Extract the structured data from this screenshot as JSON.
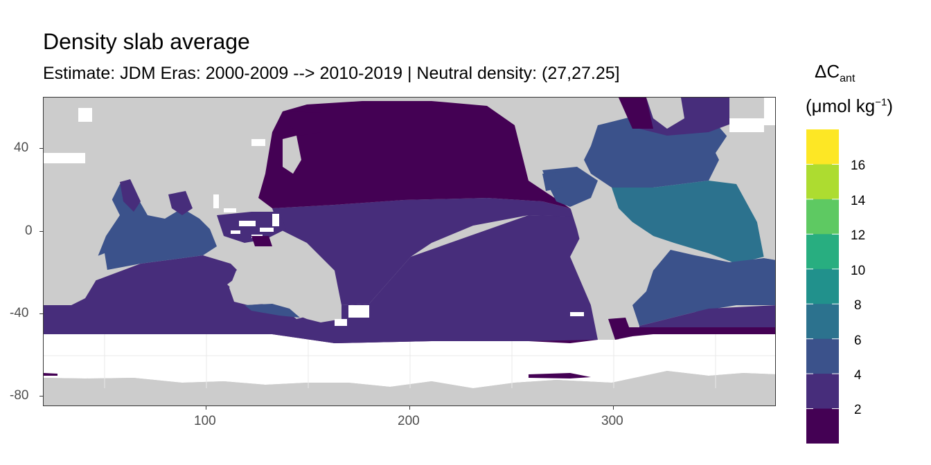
{
  "title": "Density slab average",
  "subtitle": "Estimate: JDM Eras: 2000-2009 --> 2010-2019 | Neutral density: (27,27.25]",
  "legend": {
    "title_prefix": "ΔC",
    "title_sub": "ant",
    "unit_open": "(μmol kg",
    "unit_sup": "−1",
    "unit_close": ")",
    "labels": [
      "16",
      "14",
      "12",
      "10",
      "8",
      "6",
      "4",
      "2"
    ]
  },
  "axes": {
    "y_labels": [
      "40",
      "0",
      "-40",
      "-80"
    ],
    "x_labels": [
      "100",
      "200",
      "300"
    ]
  },
  "colors": {
    "land": "#cccccc",
    "missing": "#ffffff",
    "bins": [
      "#440154",
      "#472d7b",
      "#3b528b",
      "#2c728e",
      "#21918c",
      "#28ae80",
      "#5ec962",
      "#addc30",
      "#fde725"
    ]
  },
  "chart_data": {
    "type": "heatmap",
    "title": "Density slab average",
    "subtitle": "Estimate: JDM Eras: 2000-2009 --> 2010-2019 | Neutral density: (27,27.25]",
    "xlabel": "",
    "ylabel": "",
    "xlim": [
      20,
      380
    ],
    "ylim": [
      -85,
      65
    ],
    "x_ticks": [
      100,
      200,
      300
    ],
    "y_ticks": [
      40,
      0,
      -40,
      -80
    ],
    "legend_title": "ΔCant (μmol kg−1)",
    "color_bins": [
      [
        0,
        2
      ],
      [
        2,
        4
      ],
      [
        4,
        6
      ],
      [
        6,
        8
      ],
      [
        8,
        10
      ],
      [
        10,
        12
      ],
      [
        12,
        14
      ],
      [
        14,
        16
      ],
      [
        16,
        18
      ]
    ],
    "regions": [
      {
        "name": "North Pacific",
        "bin": "0-2"
      },
      {
        "name": "Southern Ocean band",
        "bin": "0-2"
      },
      {
        "name": "Pacific / Indian / South Atlantic",
        "bin": "2-4"
      },
      {
        "name": "North Indian / South Atlantic",
        "bin": "4-6"
      },
      {
        "name": "North Atlantic subtropics",
        "bin": "4-6"
      },
      {
        "name": "Tropical Atlantic",
        "bin": "6-8"
      },
      {
        "name": "Nordic Seas",
        "bin": "2-4"
      }
    ]
  }
}
